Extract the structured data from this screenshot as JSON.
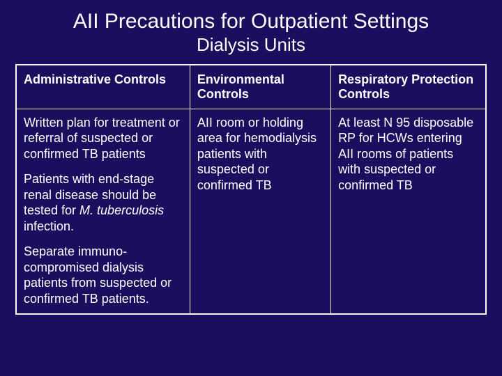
{
  "slide": {
    "title": "AII Precautions for Outpatient Settings",
    "subtitle": "Dialysis Units",
    "background_color": "#1a0e5e",
    "text_color": "#ffffff",
    "border_color": "#ffffff",
    "title_fontsize": 30,
    "subtitle_fontsize": 26,
    "header_fontsize": 18,
    "cell_fontsize": 18
  },
  "table": {
    "columns": [
      {
        "header": "Administrative Controls",
        "width_pct": 37
      },
      {
        "header": "Environmental Controls",
        "width_pct": 30
      },
      {
        "header": "Respiratory Protection Controls",
        "width_pct": 33
      }
    ],
    "rows": [
      {
        "administrative": {
          "p1": "Written plan for treatment or referral of suspected or confirmed TB patients",
          "p2_pre": "Patients with end-stage renal disease should be tested for ",
          "p2_italic": "M. tuberculosis",
          "p2_post": " infection.",
          "p3": "Separate immuno-compromised dialysis patients from suspected or confirmed TB patients."
        },
        "environmental": "AII room or holding area for hemodialysis patients with suspected or confirmed TB",
        "respiratory": "At least N 95 disposable RP for HCWs entering AII rooms of patients with suspected or confirmed TB"
      }
    ]
  }
}
